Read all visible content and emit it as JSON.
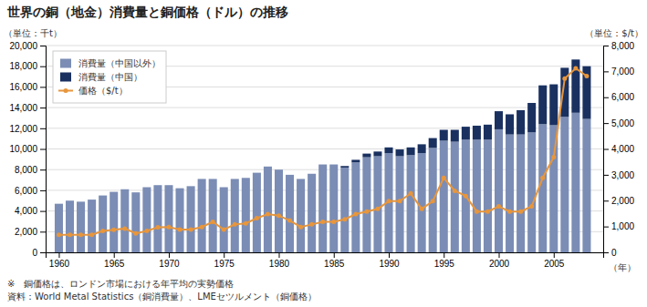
{
  "chart_data": {
    "type": "bar",
    "title": "世界の銅（地金）消費量と銅価格（ドル）の推移",
    "ylabel": "（単位：千t）",
    "y2label": "（単位：$/t）",
    "xlabel": "（年）",
    "annotations": [
      "※　銅価格は、ロンドン市場における年平均の実勢価格",
      "資料：World Metal Statistics（銅消費量）、LMEセツルメント（銅価格）"
    ],
    "x": [
      1960,
      1961,
      1962,
      1963,
      1964,
      1965,
      1966,
      1967,
      1968,
      1969,
      1970,
      1971,
      1972,
      1973,
      1974,
      1975,
      1976,
      1977,
      1978,
      1979,
      1980,
      1981,
      1982,
      1983,
      1984,
      1985,
      1986,
      1987,
      1988,
      1989,
      1990,
      1991,
      1992,
      1993,
      1994,
      1995,
      1996,
      1997,
      1998,
      1999,
      2000,
      2001,
      2002,
      2003,
      2004,
      2005,
      2006,
      2007,
      2008
    ],
    "series": [
      {
        "name": "消費量（中国以外）",
        "type": "bar",
        "color": "#7b8db5",
        "values": [
          4700,
          5000,
          4900,
          5100,
          5500,
          5850,
          6100,
          5800,
          6300,
          6500,
          6500,
          6200,
          6400,
          7100,
          7100,
          6300,
          7100,
          7200,
          7700,
          8300,
          8000,
          7500,
          7100,
          7600,
          8500,
          8500,
          8200,
          8700,
          9200,
          9300,
          9600,
          9300,
          9400,
          9600,
          10100,
          10800,
          10700,
          10900,
          10900,
          10900,
          11900,
          11400,
          11400,
          11600,
          12400,
          12300,
          13100,
          13500,
          12900
        ]
      },
      {
        "name": "消費量（中国）",
        "type": "bar",
        "color": "#1a3160",
        "values": [
          0,
          0,
          0,
          0,
          0,
          0,
          0,
          0,
          0,
          0,
          0,
          0,
          0,
          0,
          0,
          0,
          0,
          0,
          0,
          0,
          0,
          0,
          0,
          0,
          0,
          0,
          150,
          250,
          350,
          450,
          550,
          650,
          750,
          850,
          950,
          1050,
          1150,
          1250,
          1350,
          1450,
          1750,
          1950,
          2350,
          2850,
          3750,
          3950,
          4750,
          5150,
          5100
        ]
      },
      {
        "name": "価格（$/t）",
        "type": "line",
        "axis": "y2",
        "marker": "circle",
        "color": "#e8963c",
        "values": [
          680,
          680,
          680,
          680,
          830,
          870,
          920,
          730,
          830,
          970,
          980,
          880,
          880,
          980,
          1180,
          880,
          1080,
          1120,
          1320,
          1480,
          1420,
          1230,
          980,
          1080,
          1180,
          1180,
          1280,
          1480,
          1580,
          1680,
          1980,
          1980,
          2280,
          1680,
          1980,
          2880,
          2380,
          2180,
          1580,
          1580,
          1780,
          1580,
          1580,
          1780,
          2880,
          3680,
          6720,
          7120,
          6820
        ]
      }
    ],
    "stacked": true,
    "grid": true,
    "legend": "upper left",
    "xlim": [
      1958.8,
      2009.5
    ],
    "xticks": [
      1960,
      1965,
      1970,
      1975,
      1980,
      1985,
      1990,
      1995,
      2000,
      2005
    ],
    "ylim": [
      0,
      20000
    ],
    "yticks": [
      0,
      {
        "value": 2000,
        "label": "2,000"
      },
      {
        "value": 4000,
        "label": "4,000"
      },
      {
        "value": 6000,
        "label": "6,000"
      },
      {
        "value": 8000,
        "label": "8,000"
      },
      {
        "value": 10000,
        "label": "10,000"
      },
      {
        "value": 12000,
        "label": "12,000"
      },
      {
        "value": 14000,
        "label": "14,000"
      },
      {
        "value": 16000,
        "label": "16,000"
      },
      {
        "value": 18000,
        "label": "18,000"
      },
      {
        "value": 20000,
        "label": "20,000"
      }
    ],
    "y2lim": [
      0,
      8000
    ],
    "y2ticks": [
      0,
      {
        "value": 1000,
        "label": "1,000"
      },
      {
        "value": 2000,
        "label": "2,000"
      },
      {
        "value": 3000,
        "label": "3,000"
      },
      {
        "value": 4000,
        "label": "4,000"
      },
      {
        "value": 5000,
        "label": "5,000"
      },
      {
        "value": 6000,
        "label": "6,000"
      },
      {
        "value": 7000,
        "label": "7,000"
      },
      {
        "value": 8000,
        "label": "8,000"
      }
    ]
  }
}
